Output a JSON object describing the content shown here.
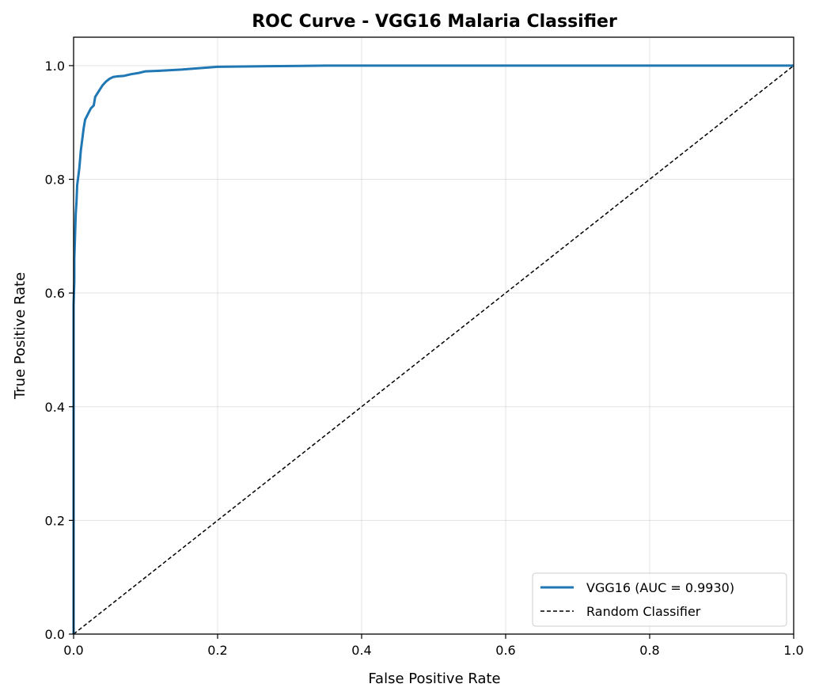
{
  "chart_data": {
    "type": "line",
    "title": "ROC Curve - VGG16 Malaria Classifier",
    "xlabel": "False Positive Rate",
    "ylabel": "True Positive Rate",
    "xlim": [
      0.0,
      1.0
    ],
    "ylim": [
      0.0,
      1.05
    ],
    "xticks": [
      0.0,
      0.2,
      0.4,
      0.6,
      0.8,
      1.0
    ],
    "yticks": [
      0.0,
      0.2,
      0.4,
      0.6,
      0.8,
      1.0
    ],
    "xtick_labels": [
      "0.0",
      "0.2",
      "0.4",
      "0.6",
      "0.8",
      "1.0"
    ],
    "ytick_labels": [
      "0.0",
      "0.2",
      "0.4",
      "0.6",
      "0.8",
      "1.0"
    ],
    "grid": true,
    "legend_position": "lower-right",
    "series": [
      {
        "name": "VGG16 (AUC = 0.9930)",
        "color": "#1f77b4",
        "style": "solid",
        "x": [
          0.0,
          0.0,
          0.001,
          0.001,
          0.002,
          0.003,
          0.004,
          0.005,
          0.006,
          0.008,
          0.01,
          0.012,
          0.014,
          0.016,
          0.018,
          0.02,
          0.024,
          0.028,
          0.03,
          0.035,
          0.04,
          0.045,
          0.05,
          0.055,
          0.06,
          0.07,
          0.08,
          0.09,
          0.1,
          0.12,
          0.15,
          0.18,
          0.2,
          0.27,
          0.35,
          0.5,
          0.7,
          1.0
        ],
        "y": [
          0.0,
          0.58,
          0.62,
          0.66,
          0.7,
          0.74,
          0.76,
          0.79,
          0.8,
          0.82,
          0.85,
          0.87,
          0.89,
          0.905,
          0.91,
          0.915,
          0.925,
          0.93,
          0.945,
          0.955,
          0.965,
          0.972,
          0.977,
          0.98,
          0.981,
          0.982,
          0.985,
          0.987,
          0.99,
          0.991,
          0.993,
          0.996,
          0.998,
          0.999,
          1.0,
          1.0,
          1.0,
          1.0
        ]
      },
      {
        "name": "Random Classifier",
        "color": "#000000",
        "style": "dashed",
        "x": [
          0.0,
          1.0
        ],
        "y": [
          0.0,
          1.0
        ]
      }
    ]
  }
}
